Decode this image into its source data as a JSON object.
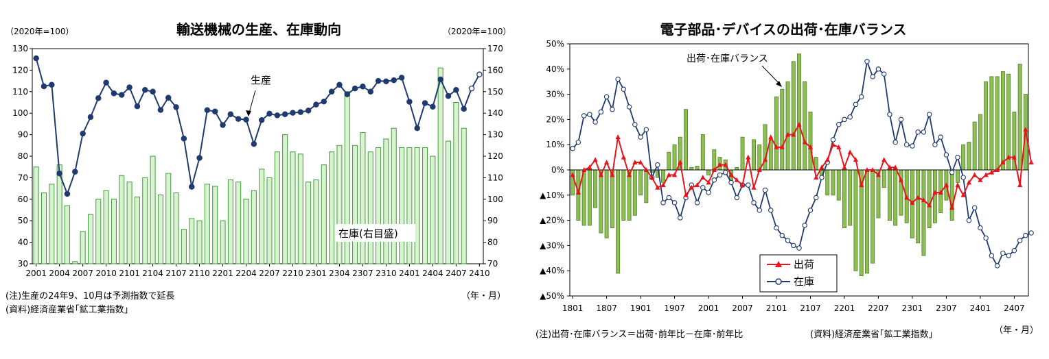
{
  "colors": {
    "prod_line": "#1f3a6e",
    "inv_bar_fill": "#d9f2cf",
    "inv_bar_stroke": "#3d9a3a",
    "bal_bar_fill": "#8dbf55",
    "bal_bar_stroke": "#4f7f24",
    "ship_line": "#e8141b",
    "stock_line": "#1f3a6e"
  },
  "chart_data": [
    {
      "type": "bar+line",
      "title": "輸送機械の生産、在庫動向",
      "left_unit": "（2020年=100）",
      "right_unit": "（2020年=100）",
      "x_unit": "（年・月）",
      "y_left_lim": [
        30,
        130
      ],
      "y_left_ticks": [
        "130",
        "120",
        "110",
        "100",
        "90",
        "80",
        "70",
        "60",
        "50",
        "40",
        "30"
      ],
      "y_right_lim": [
        70,
        170
      ],
      "y_right_ticks": [
        "170",
        "160",
        "150",
        "140",
        "130",
        "120",
        "110",
        "100",
        "90",
        "80",
        "70"
      ],
      "x_tick_labels": [
        "2001",
        "2004",
        "2007",
        "2010",
        "2101",
        "2104",
        "2107",
        "2110",
        "2201",
        "2204",
        "2207",
        "2210",
        "2301",
        "2304",
        "2307",
        "2310",
        "2401",
        "2404",
        "2407",
        "2410"
      ],
      "production_label": "生産",
      "inventory_label": "在庫(右目盛)",
      "production_forecast_points": 2,
      "production": [
        125.5,
        112.5,
        113.2,
        72,
        62.5,
        72.8,
        90.5,
        98.2,
        107,
        114.2,
        109.2,
        108.5,
        112,
        103.2,
        110.8,
        110,
        101.5,
        107.2,
        102.8,
        88.2,
        65.8,
        79.2,
        101.4,
        100.8,
        94.5,
        99.5,
        97.3,
        97,
        85.7,
        96.8,
        99.8,
        99,
        99.5,
        100.2,
        100.5,
        101.2,
        104,
        105.4,
        110,
        113.2,
        108.8,
        111.5,
        112.4,
        110,
        115,
        114.8,
        115.3,
        116.5,
        105.3,
        93,
        104.7,
        103,
        115.7,
        108,
        110.8,
        102,
        111.5,
        118
      ],
      "inventory": [
        115,
        103,
        107,
        116,
        97,
        71,
        85,
        93,
        100,
        104,
        100,
        111,
        108,
        101,
        110,
        120,
        102,
        112,
        103,
        86,
        91,
        90,
        107,
        106,
        90,
        109,
        108,
        100,
        104,
        114,
        110,
        122,
        130,
        122,
        121,
        108,
        109,
        116,
        122,
        125,
        150,
        125,
        131,
        122,
        124,
        128,
        133,
        124,
        124,
        124,
        124,
        120,
        161,
        127,
        145,
        133
      ]
    },
    {
      "type": "bar+line",
      "title": "電子部品･デバイスの出荷･在庫バランス",
      "x_unit": "（年・月）",
      "y_lim": [
        -50,
        50
      ],
      "y_ticks": [
        "50%",
        "40%",
        "30%",
        "20%",
        "10%",
        "0%",
        "▲10%",
        "▲20%",
        "▲30%",
        "▲40%",
        "▲50%"
      ],
      "x_tick_labels": [
        "1801",
        "1807",
        "1901",
        "1907",
        "2001",
        "2007",
        "2101",
        "2107",
        "2201",
        "2207",
        "2301",
        "2307",
        "2401",
        "2407"
      ],
      "balance_label": "出荷･在庫バランス",
      "legend": [
        "出荷",
        "在庫"
      ],
      "balance": [
        -10,
        -20,
        -22,
        -22,
        -15,
        -25,
        -27,
        -23,
        -41,
        -20,
        -20,
        -18,
        -10,
        -13,
        -1,
        -3,
        -5,
        7,
        10,
        13,
        24,
        1,
        1.5,
        14,
        -2,
        8,
        5,
        4,
        -5,
        1,
        13,
        0,
        12,
        10,
        18,
        12,
        29,
        32,
        35,
        43,
        46,
        35,
        23,
        5,
        -3,
        -10,
        -10,
        -12,
        -23,
        -22,
        -40,
        -42,
        -41,
        -37,
        -19,
        -7,
        -20,
        -22,
        -18,
        -21,
        -27,
        -29,
        -34,
        -23,
        -21,
        -17,
        -12,
        -20,
        -5,
        10,
        11,
        19,
        22,
        35,
        37,
        37,
        39,
        38,
        23,
        42,
        30
      ],
      "shipments": [
        -2,
        -9,
        0,
        1,
        4,
        -2,
        3,
        -2,
        13,
        5,
        -2,
        3,
        3,
        0,
        -3,
        -7,
        -6,
        -2,
        -2,
        3,
        -10,
        -7,
        -6,
        -3,
        -5,
        0,
        2,
        2,
        -2,
        -4,
        -6,
        5,
        -7,
        0,
        4,
        13,
        9,
        9,
        14,
        14,
        18,
        11,
        9,
        -3,
        1,
        4,
        10,
        9,
        1,
        7,
        4,
        -6,
        0,
        0,
        -2,
        4,
        1,
        1,
        -4,
        -11,
        -13,
        -11,
        -12,
        -14,
        -9,
        -9,
        -6,
        -15,
        -6,
        -10,
        -5,
        -2,
        -4,
        -2,
        -1,
        0,
        3,
        5,
        5,
        -6,
        16,
        3
      ],
      "inventory": [
        8.5,
        11,
        21.5,
        22,
        19,
        23,
        29,
        24,
        36,
        32,
        25,
        18,
        13,
        16,
        -3,
        2,
        -13,
        -11,
        -13,
        -19,
        -11,
        -6,
        -13,
        -7,
        -9,
        -4,
        -2,
        -1,
        -5,
        -11,
        -6,
        -6,
        -13,
        -16,
        -8,
        -16,
        -23,
        -26,
        -28,
        -30,
        -31,
        -22,
        -16,
        -11,
        -3,
        3,
        12,
        18,
        20,
        21,
        26,
        29,
        43,
        37,
        40,
        38,
        22,
        11,
        20,
        10,
        9.5,
        15,
        15,
        22,
        10,
        13,
        6,
        -1,
        5,
        -3,
        -20,
        -15,
        -23,
        -27,
        -34,
        -38,
        -33,
        -34,
        -32,
        -28,
        -26,
        -25
      ]
    }
  ],
  "notes": {
    "left_note": "(注)生産の24年9、10月は予測指数で延長",
    "left_source": "(資料)経済産業省｢鉱工業指数｣",
    "right_note": "(注)出荷･在庫バランス＝出荷･前年比－在庫･前年比",
    "right_source": "(資料)経済産業省｢鉱工業指数｣"
  }
}
